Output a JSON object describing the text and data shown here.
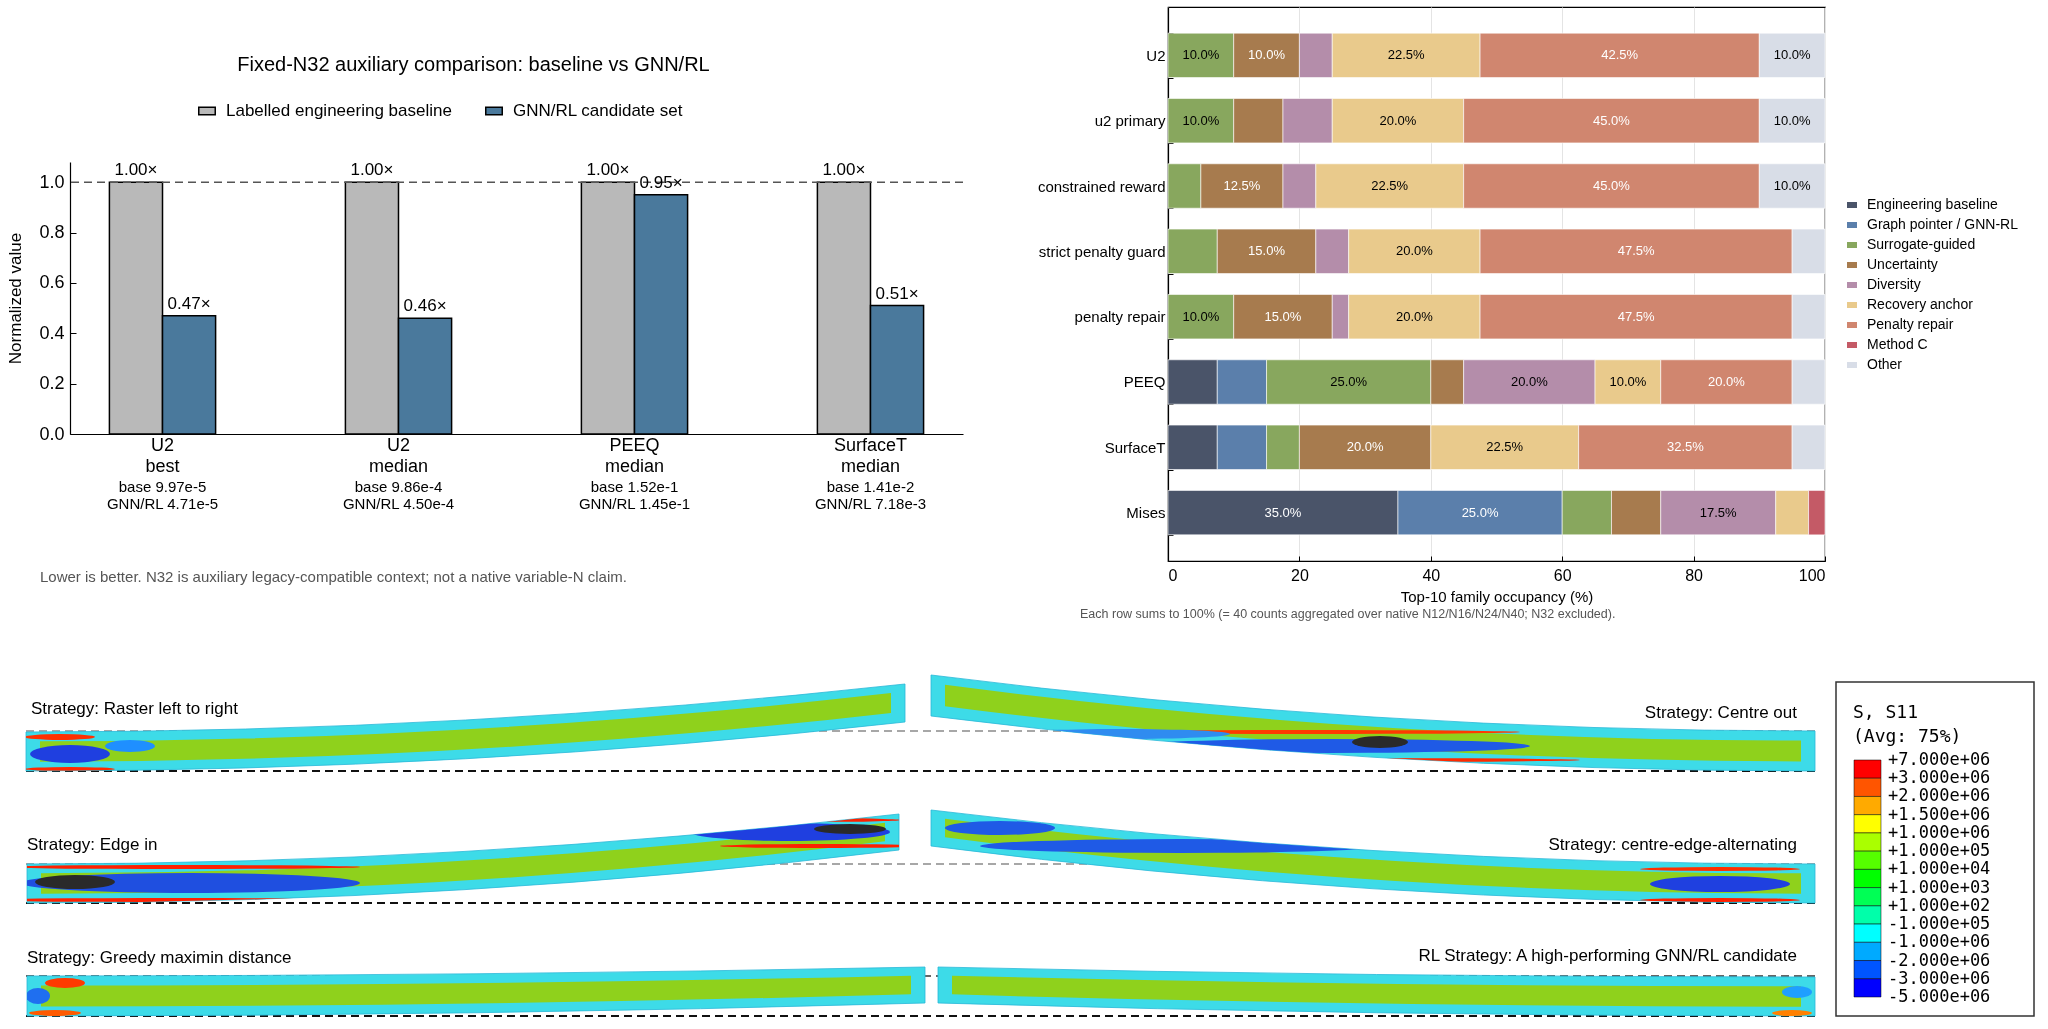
{
  "chart_data": [
    {
      "type": "bar",
      "title": "Fixed-N32 auxiliary comparison: baseline vs GNN/RL",
      "ylabel": "Normalized value",
      "categories": [
        "U2\nbest\nbase 9.97e-5\nGNN/RL 4.71e-5",
        "U2\nmedian\nbase 9.86e-4\nGNN/RL 4.50e-4",
        "PEEQ\nmedian\nbase 1.52e-1\nGNN/RL 1.45e-1",
        "SurfaceT\nmedian\nbase 1.41e-2\nGNN/RL 7.18e-3"
      ],
      "series": [
        {
          "name": "Labelled engineering baseline",
          "color": "#b9b9b9",
          "values": [
            1,
            1,
            1,
            1
          ],
          "value_labels": [
            "1.00×",
            "1.00×",
            "1.00×",
            "1.00×"
          ]
        },
        {
          "name": "GNN/RL candidate set",
          "color": "#4a799c",
          "values": [
            0.47,
            0.46,
            0.95,
            0.51
          ],
          "value_labels": [
            "0.47×",
            "0.46×",
            "0.95×",
            "0.51×"
          ]
        }
      ],
      "ylim": [
        0,
        1.08
      ],
      "yticks": [
        {
          "value": 0,
          "label": "0.0"
        },
        0.2,
        0.4,
        0.6,
        0.8,
        {
          "value": 1,
          "label": "1.0"
        }
      ],
      "ref_lines": [
        {
          "axis": "y",
          "value": 1,
          "color": "#555555",
          "line_style": "dashed"
        }
      ],
      "legend": "top",
      "annotations": [
        "Lower is better. N32 is auxiliary legacy-compatible context; not a native variable-N claim."
      ]
    },
    {
      "type": "bar",
      "orientation": "horizontal",
      "stacked": true,
      "xlabel": "Top-10 family occupancy (%)",
      "categories": [
        "U2",
        "u2 primary",
        "constrained reward",
        "strict penalty guard",
        "penalty repair",
        "PEEQ",
        "SurfaceT",
        "Mises"
      ],
      "series": [
        {
          "name": "Engineering baseline",
          "color": "#4a5469",
          "values": [
            0,
            0,
            0,
            0,
            0,
            7.5,
            7.5,
            35
          ],
          "value_labels": [
            null,
            null,
            null,
            null,
            null,
            null,
            null,
            "35.0%"
          ]
        },
        {
          "name": "Graph pointer / GNN-RL",
          "color": "#5b7fab",
          "values": [
            0,
            0,
            0,
            0,
            0,
            7.5,
            7.5,
            25
          ],
          "value_labels": [
            null,
            null,
            null,
            null,
            null,
            null,
            null,
            "25.0%"
          ]
        },
        {
          "name": "Surrogate-guided",
          "color": "#88a75e",
          "values": [
            10,
            10,
            5,
            7.5,
            10,
            25,
            5,
            7.5
          ],
          "value_labels": [
            "10.0%",
            "10.0%",
            null,
            null,
            "10.0%",
            "25.0%",
            null,
            null
          ]
        },
        {
          "name": "Uncertainty",
          "color": "#a77b4e",
          "values": [
            10,
            7.5,
            12.5,
            15,
            15,
            5,
            20,
            7.5
          ],
          "value_labels": [
            "10.0%",
            null,
            "12.5%",
            "15.0%",
            "15.0%",
            null,
            "20.0%",
            null
          ]
        },
        {
          "name": "Diversity",
          "color": "#b48daa",
          "values": [
            5,
            7.5,
            5,
            5,
            2.5,
            20,
            0,
            17.5
          ],
          "value_labels": [
            null,
            null,
            null,
            null,
            null,
            "20.0%",
            null,
            "17.5%"
          ]
        },
        {
          "name": "Recovery anchor",
          "color": "#e9ca8c",
          "values": [
            22.5,
            20,
            22.5,
            20,
            20,
            10,
            22.5,
            5
          ],
          "value_labels": [
            "22.5%",
            "20.0%",
            "22.5%",
            "20.0%",
            "20.0%",
            "10.0%",
            "22.5%",
            null
          ]
        },
        {
          "name": "Penalty repair",
          "color": "#d0866f",
          "values": [
            42.5,
            45,
            45,
            47.5,
            47.5,
            20,
            32.5,
            0
          ],
          "value_labels": [
            "42.5%",
            "45.0%",
            "45.0%",
            "47.5%",
            "47.5%",
            "20.0%",
            "32.5%",
            null
          ]
        },
        {
          "name": "Method C",
          "color": "#c45a66",
          "values": [
            0,
            0,
            0,
            0,
            0,
            0,
            0,
            2.5
          ]
        },
        {
          "name": "Other",
          "color": "#d8dde7",
          "values": [
            10,
            10,
            10,
            5,
            5,
            5,
            5,
            0
          ],
          "value_labels": [
            "10.0%",
            "10.0%",
            "10.0%",
            null,
            null,
            null,
            null,
            null
          ]
        }
      ],
      "xlim": [
        0,
        100
      ],
      "xticks": [
        0,
        20,
        40,
        60,
        80,
        100
      ],
      "grid": "x",
      "legend": "right",
      "annotations": [
        "Each row sums to 100% (= 40 counts aggregated over native N12/N16/N24/N40; N32 excluded)."
      ]
    },
    {
      "type": "other",
      "annotations": [
        "Strategy: Raster left to right",
        "Strategy: Centre out",
        "Strategy: Edge in",
        "Strategy: centre-edge-alternating",
        "Strategy: Greedy maximin distance",
        "RL Strategy: A high-performing GNN/RL candidate"
      ],
      "legend_title": "S, S11\n(Avg: 75%)",
      "categories": [
        "+7.000e+06",
        "+3.000e+06",
        "+2.000e+06",
        "+1.500e+06",
        "+1.000e+06",
        "+1.000e+05",
        "+1.000e+04",
        "+1.000e+03",
        "+1.000e+02",
        "-1.000e+05",
        "-1.000e+06",
        "-2.000e+06",
        "-3.000e+06",
        "-5.000e+06"
      ],
      "colors": [
        "#ff0000",
        "#ff5500",
        "#ffaa00",
        "#ffff00",
        "#aaff00",
        "#55ff00",
        "#00ff00",
        "#00ff55",
        "#00ffaa",
        "#00ffff",
        "#00aaff",
        "#0055ff",
        "#0000ff"
      ]
    }
  ]
}
